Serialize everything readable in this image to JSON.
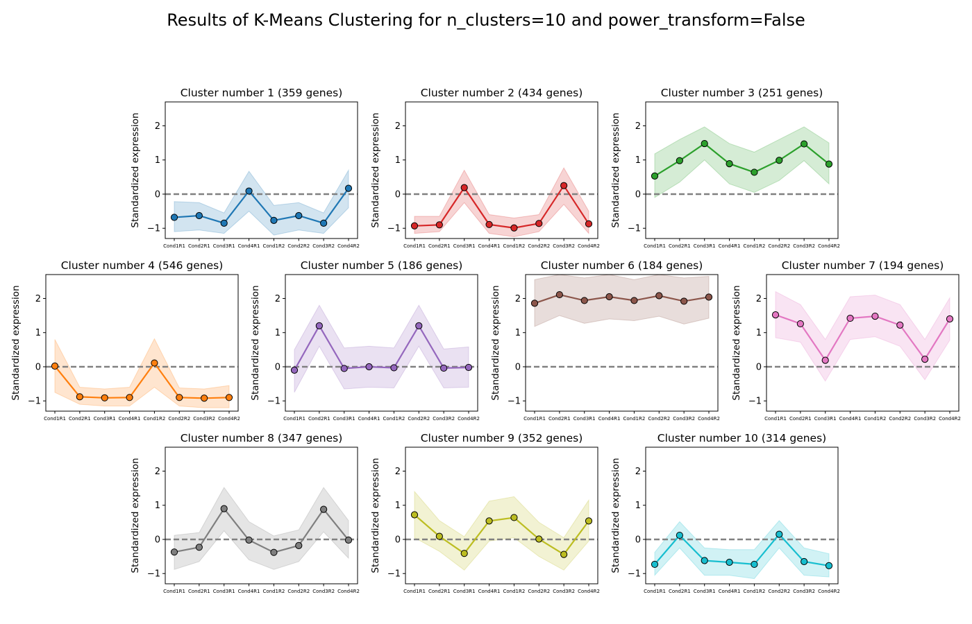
{
  "chart_data": {
    "type": "line",
    "title": "Results of K-Means Clustering for n_clusters=10 and power_transform=False",
    "ylabel": "Standardized expression",
    "x": [
      "Cond1R1",
      "Cond2R1",
      "Cond3R1",
      "Cond4R1",
      "Cond1R2",
      "Cond2R2",
      "Cond3R2",
      "Cond4R2"
    ],
    "yticks": [
      -1,
      0,
      1,
      2
    ],
    "ylim": [
      -1.3,
      2.7
    ],
    "reference_line": 0,
    "band": "shaded range around each cluster mean",
    "panels": [
      {
        "title": "Cluster number 1 (359 genes)",
        "color": "#1f77b4",
        "values": [
          -0.68,
          -0.63,
          -0.85,
          0.09,
          -0.77,
          -0.63,
          -0.85,
          0.17
        ],
        "lower": [
          -1.1,
          -1.05,
          -1.15,
          -0.5,
          -1.2,
          -1.05,
          -1.15,
          -0.4
        ],
        "upper": [
          -0.22,
          -0.25,
          -0.55,
          0.67,
          -0.33,
          -0.25,
          -0.55,
          0.7
        ]
      },
      {
        "title": "Cluster number 2 (434 genes)",
        "color": "#d62728",
        "values": [
          -0.93,
          -0.9,
          0.19,
          -0.89,
          -0.99,
          -0.86,
          0.25,
          -0.87
        ],
        "lower": [
          -1.15,
          -1.1,
          -0.25,
          -1.15,
          -1.25,
          -1.1,
          -0.3,
          -1.15
        ],
        "upper": [
          -0.65,
          -0.65,
          0.7,
          -0.6,
          -0.7,
          -0.6,
          0.77,
          -0.5
        ]
      },
      {
        "title": "Cluster number 3 (251 genes)",
        "color": "#2ca02c",
        "values": [
          0.53,
          0.98,
          1.48,
          0.89,
          0.64,
          0.99,
          1.47,
          0.88
        ],
        "lower": [
          -0.1,
          0.35,
          1.0,
          0.3,
          0.05,
          0.4,
          0.98,
          0.3
        ],
        "upper": [
          1.18,
          1.6,
          1.97,
          1.48,
          1.23,
          1.6,
          1.97,
          1.5
        ]
      },
      {
        "title": "Cluster number 4 (546 genes)",
        "color": "#ff7f0e",
        "values": [
          0.02,
          -0.88,
          -0.91,
          -0.9,
          0.11,
          -0.9,
          -0.92,
          -0.9
        ],
        "lower": [
          -0.75,
          -1.1,
          -1.15,
          -1.15,
          -0.6,
          -1.15,
          -1.2,
          -1.2
        ],
        "upper": [
          0.8,
          -0.6,
          -0.65,
          -0.6,
          0.82,
          -0.62,
          -0.65,
          -0.55
        ]
      },
      {
        "title": "Cluster number 5 (186 genes)",
        "color": "#9467bd",
        "values": [
          -0.1,
          1.2,
          -0.05,
          0.0,
          -0.03,
          1.2,
          -0.04,
          -0.02
        ],
        "lower": [
          -0.75,
          0.6,
          -0.65,
          -0.6,
          -0.62,
          0.6,
          -0.62,
          -0.6
        ],
        "upper": [
          0.5,
          1.8,
          0.55,
          0.6,
          0.55,
          1.8,
          0.52,
          0.58
        ]
      },
      {
        "title": "Cluster number 6 (184 genes)",
        "color": "#8c564b",
        "values": [
          1.86,
          2.11,
          1.94,
          2.05,
          1.94,
          2.08,
          1.92,
          2.04
        ],
        "lower": [
          1.18,
          1.5,
          1.27,
          1.4,
          1.35,
          1.48,
          1.25,
          1.42
        ],
        "upper": [
          2.55,
          2.7,
          2.6,
          2.7,
          2.55,
          2.7,
          2.6,
          2.65
        ]
      },
      {
        "title": "Cluster number 7 (194 genes)",
        "color": "#e377c2",
        "values": [
          1.52,
          1.26,
          0.19,
          1.42,
          1.48,
          1.22,
          0.22,
          1.4
        ],
        "lower": [
          0.85,
          0.72,
          -0.42,
          0.8,
          0.88,
          0.6,
          -0.38,
          0.78
        ],
        "upper": [
          2.2,
          1.82,
          0.8,
          2.05,
          2.1,
          1.82,
          0.8,
          2.02
        ]
      },
      {
        "title": "Cluster number 8 (347 genes)",
        "color": "#7f7f7f",
        "values": [
          -0.37,
          -0.23,
          0.9,
          -0.02,
          -0.38,
          -0.18,
          0.88,
          -0.02
        ],
        "lower": [
          -0.88,
          -0.65,
          0.25,
          -0.6,
          -0.88,
          -0.65,
          0.22,
          -0.55
        ],
        "upper": [
          0.12,
          0.2,
          1.52,
          0.52,
          0.1,
          0.28,
          1.52,
          0.55
        ]
      },
      {
        "title": "Cluster number 9 (352 genes)",
        "color": "#bcbd22",
        "values": [
          0.72,
          0.09,
          -0.41,
          0.54,
          0.64,
          0.01,
          -0.44,
          0.54
        ],
        "lower": [
          0.05,
          -0.35,
          -0.9,
          -0.05,
          0.05,
          -0.5,
          -0.9,
          -0.05
        ],
        "upper": [
          1.4,
          0.55,
          0.08,
          1.12,
          1.25,
          0.5,
          0.05,
          1.15
        ]
      },
      {
        "title": "Cluster number 10 (314 genes)",
        "color": "#17becf",
        "values": [
          -0.73,
          0.12,
          -0.62,
          -0.67,
          -0.73,
          0.15,
          -0.65,
          -0.77
        ],
        "lower": [
          -1.05,
          -0.25,
          -1.05,
          -1.05,
          -1.15,
          -0.25,
          -1.05,
          -1.1
        ],
        "upper": [
          -0.38,
          0.52,
          -0.25,
          -0.3,
          -0.3,
          0.55,
          -0.25,
          -0.42
        ]
      }
    ]
  }
}
